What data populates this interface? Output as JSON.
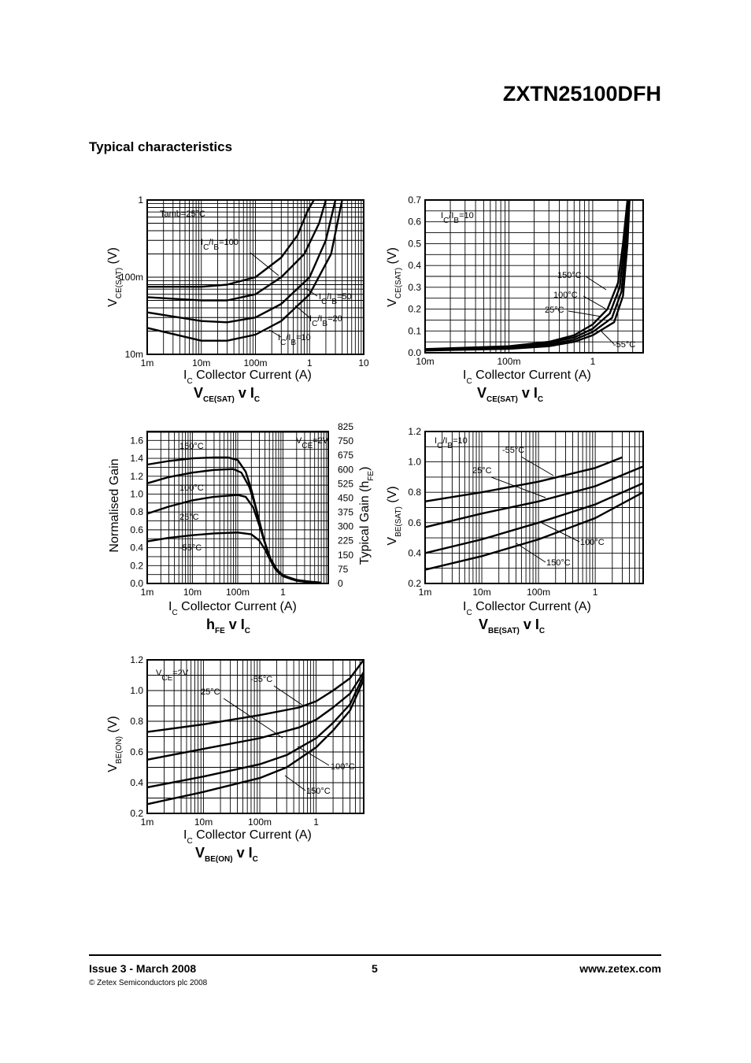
{
  "header": {
    "part_number": "ZXTN25100DFH",
    "section_title": "Typical characteristics"
  },
  "footer": {
    "issue": "Issue 3 - March 2008",
    "page": "5",
    "website": "www.zetex.com",
    "copyright": "© Zetex Semiconductors plc 2008"
  },
  "chart_data": [
    {
      "type": "line",
      "xscale": "log",
      "yscale": "log",
      "xlim": [
        0.001,
        10
      ],
      "ylim": [
        0.01,
        1
      ],
      "x_ticks": [
        "1m",
        "10m",
        "100m",
        "1",
        "10"
      ],
      "y_ticks": [
        "10m",
        "100m",
        "1"
      ],
      "xlabel": {
        "main": "I",
        "sub": "C",
        "rest": "  Collector Current (A)"
      },
      "ylabel": {
        "main": "V",
        "sub": "CE(SAT)",
        "rest": " (V)"
      },
      "caption": {
        "main": "V",
        "sub": "CE(SAT)",
        "rest": " v I",
        "sub2": "C"
      },
      "annotations": [
        "Tamb=25°C",
        "IC/IB=100",
        "IC/IB=50",
        "IC/IB=20",
        "IC/IB=10"
      ],
      "series": [
        {
          "x": [
            0.001,
            0.01,
            0.03,
            0.1,
            0.3,
            0.6,
            0.9,
            1.2
          ],
          "y": [
            0.075,
            0.075,
            0.08,
            0.1,
            0.18,
            0.35,
            0.7,
            1.0
          ]
        },
        {
          "x": [
            0.001,
            0.01,
            0.03,
            0.1,
            0.3,
            0.8,
            1.5,
            2.0
          ],
          "y": [
            0.055,
            0.05,
            0.05,
            0.06,
            0.1,
            0.2,
            0.5,
            1.0
          ]
        },
        {
          "x": [
            0.001,
            0.01,
            0.03,
            0.1,
            0.3,
            1.0,
            2.0,
            3.0
          ],
          "y": [
            0.035,
            0.027,
            0.026,
            0.03,
            0.045,
            0.1,
            0.3,
            1.0
          ]
        },
        {
          "x": [
            0.001,
            0.01,
            0.03,
            0.1,
            0.3,
            1.0,
            2.5,
            4.0
          ],
          "y": [
            0.022,
            0.015,
            0.015,
            0.018,
            0.027,
            0.06,
            0.2,
            1.0
          ]
        }
      ]
    },
    {
      "type": "line",
      "xscale": "log",
      "yscale": "linear",
      "xlim": [
        0.01,
        4
      ],
      "ylim": [
        0,
        0.7
      ],
      "x_ticks": [
        "10m",
        "100m",
        "1"
      ],
      "y_ticks": [
        "0.0",
        "0.1",
        "0.2",
        "0.3",
        "0.4",
        "0.5",
        "0.6",
        "0.7"
      ],
      "xlabel": {
        "main": "I",
        "sub": "C",
        "rest": "  Collector Current (A)"
      },
      "ylabel": {
        "main": "V",
        "sub": "CE(SAT)",
        "rest": " (V)"
      },
      "caption": {
        "main": "V",
        "sub": "CE(SAT)",
        "rest": " v I",
        "sub2": "C"
      },
      "annotations": [
        "IC/IB=10",
        "150°C",
        "100°C",
        "25°C",
        "-55°C"
      ],
      "series": [
        {
          "name": "150°C",
          "x": [
            0.01,
            0.1,
            0.3,
            0.6,
            1,
            1.5,
            2.0,
            2.3,
            2.6
          ],
          "y": [
            0.017,
            0.03,
            0.05,
            0.08,
            0.13,
            0.2,
            0.32,
            0.5,
            0.7
          ]
        },
        {
          "name": "100°C",
          "x": [
            0.01,
            0.1,
            0.3,
            0.6,
            1,
            1.6,
            2.1,
            2.4,
            2.65
          ],
          "y": [
            0.015,
            0.027,
            0.045,
            0.07,
            0.11,
            0.18,
            0.3,
            0.5,
            0.7
          ]
        },
        {
          "name": "25°C",
          "x": [
            0.01,
            0.1,
            0.3,
            0.6,
            1,
            1.7,
            2.2,
            2.5,
            2.7
          ],
          "y": [
            0.012,
            0.022,
            0.037,
            0.06,
            0.095,
            0.16,
            0.28,
            0.5,
            0.7
          ]
        },
        {
          "name": "-55°C",
          "x": [
            0.01,
            0.1,
            0.3,
            0.6,
            1,
            1.8,
            2.3,
            2.6,
            2.75
          ],
          "y": [
            0.01,
            0.018,
            0.03,
            0.05,
            0.08,
            0.14,
            0.26,
            0.5,
            0.7
          ]
        }
      ]
    },
    {
      "type": "line",
      "xscale": "log",
      "yscale": "linear",
      "xlim": [
        0.001,
        10
      ],
      "ylim": [
        0,
        1.7
      ],
      "x_ticks": [
        "1m",
        "10m",
        "100m",
        "1"
      ],
      "y_ticks": [
        "0.0",
        "0.2",
        "0.4",
        "0.6",
        "0.8",
        "1.0",
        "1.2",
        "1.4",
        "1.6"
      ],
      "y2_ticks": [
        "0",
        "75",
        "150",
        "225",
        "300",
        "375",
        "450",
        "525",
        "600",
        "675",
        "750",
        "825"
      ],
      "xlabel": {
        "main": "I",
        "sub": "C",
        "rest": "  Collector Current (A)"
      },
      "ylabel": {
        "main": "Normalised Gain",
        "sub": "",
        "rest": ""
      },
      "y2label": {
        "main": "Typical Gain (h",
        "sub": "FE",
        "rest": ")"
      },
      "caption": {
        "main": "h",
        "sub": "FE",
        "rest": " v I",
        "sub2": "C"
      },
      "annotations": [
        "VCE=2V",
        "150°C",
        "100°C",
        "25°C",
        "-55°C"
      ],
      "series": [
        {
          "name": "150°C",
          "x": [
            0.001,
            0.003,
            0.01,
            0.03,
            0.06,
            0.1,
            0.15,
            0.2,
            0.3,
            0.4,
            0.6,
            1,
            2,
            4,
            7
          ],
          "y": [
            1.33,
            1.37,
            1.4,
            1.41,
            1.41,
            1.38,
            1.25,
            1.05,
            0.7,
            0.45,
            0.2,
            0.09,
            0.04,
            0.02,
            0.01
          ]
        },
        {
          "name": "100°C",
          "x": [
            0.001,
            0.003,
            0.01,
            0.03,
            0.08,
            0.12,
            0.18,
            0.25,
            0.35,
            0.5,
            0.8,
            1.5,
            3,
            7
          ],
          "y": [
            1.12,
            1.19,
            1.24,
            1.27,
            1.28,
            1.24,
            1.08,
            0.85,
            0.55,
            0.3,
            0.12,
            0.05,
            0.02,
            0.01
          ]
        },
        {
          "name": "25°C",
          "x": [
            0.001,
            0.003,
            0.01,
            0.03,
            0.1,
            0.15,
            0.22,
            0.3,
            0.4,
            0.55,
            0.8,
            1.5,
            3,
            7
          ],
          "y": [
            0.78,
            0.86,
            0.93,
            0.97,
            0.99,
            0.97,
            0.85,
            0.65,
            0.45,
            0.25,
            0.12,
            0.05,
            0.02,
            0.01
          ]
        },
        {
          "name": "-55°C",
          "x": [
            0.001,
            0.003,
            0.01,
            0.03,
            0.1,
            0.2,
            0.3,
            0.4,
            0.5,
            0.7,
            1,
            2,
            5
          ],
          "y": [
            0.47,
            0.51,
            0.54,
            0.56,
            0.57,
            0.55,
            0.48,
            0.38,
            0.28,
            0.15,
            0.08,
            0.03,
            0.01
          ]
        }
      ]
    },
    {
      "type": "line",
      "xscale": "log",
      "yscale": "linear",
      "xlim": [
        0.001,
        7
      ],
      "ylim": [
        0.2,
        1.2
      ],
      "x_ticks": [
        "1m",
        "10m",
        "100m",
        "1"
      ],
      "y_ticks": [
        "0.2",
        "0.4",
        "0.6",
        "0.8",
        "1.0",
        "1.2"
      ],
      "xlabel": {
        "main": "I",
        "sub": "C",
        "rest": "  Collector Current (A)"
      },
      "ylabel": {
        "main": "V",
        "sub": "BE(SAT)",
        "rest": " (V)"
      },
      "caption": {
        "main": "V",
        "sub": "BE(SAT)",
        "rest": " v I",
        "sub2": "C"
      },
      "annotations": [
        "IC/IB=10",
        "-55°C",
        "25°C",
        "100°C",
        "150°C"
      ],
      "series": [
        {
          "name": "-55°C",
          "x": [
            0.001,
            0.01,
            0.1,
            1,
            3
          ],
          "y": [
            0.74,
            0.8,
            0.87,
            0.96,
            1.03
          ]
        },
        {
          "name": "25°C",
          "x": [
            0.001,
            0.01,
            0.1,
            1,
            7
          ],
          "y": [
            0.57,
            0.66,
            0.74,
            0.84,
            0.97
          ]
        },
        {
          "name": "100°C",
          "x": [
            0.001,
            0.01,
            0.1,
            1,
            7
          ],
          "y": [
            0.4,
            0.49,
            0.6,
            0.72,
            0.86
          ]
        },
        {
          "name": "150°C",
          "x": [
            0.001,
            0.01,
            0.1,
            1,
            7
          ],
          "y": [
            0.29,
            0.38,
            0.49,
            0.63,
            0.8
          ]
        }
      ]
    },
    {
      "type": "line",
      "xscale": "log",
      "yscale": "linear",
      "xlim": [
        0.001,
        7
      ],
      "ylim": [
        0.2,
        1.2
      ],
      "x_ticks": [
        "1m",
        "10m",
        "100m",
        "1"
      ],
      "y_ticks": [
        "0.2",
        "0.4",
        "0.6",
        "0.8",
        "1.0",
        "1.2"
      ],
      "xlabel": {
        "main": "I",
        "sub": "C",
        "rest": "  Collector Current (A)"
      },
      "ylabel": {
        "main": "V",
        "sub": "BE(ON)",
        "rest": " (V)"
      },
      "caption": {
        "main": "V",
        "sub": "BE(ON)",
        "rest": " v I",
        "sub2": "C"
      },
      "annotations": [
        "VCE=2V",
        "-55°C",
        "25°C",
        "100°C",
        "150°C"
      ],
      "series": [
        {
          "name": "-55°C",
          "x": [
            0.001,
            0.01,
            0.1,
            0.5,
            1,
            2,
            4,
            7
          ],
          "y": [
            0.73,
            0.78,
            0.84,
            0.89,
            0.93,
            1.0,
            1.08,
            1.2
          ]
        },
        {
          "name": "25°C",
          "x": [
            0.001,
            0.01,
            0.1,
            0.5,
            1,
            2,
            4,
            7
          ],
          "y": [
            0.55,
            0.62,
            0.69,
            0.76,
            0.81,
            0.89,
            0.98,
            1.12
          ]
        },
        {
          "name": "100°C",
          "x": [
            0.001,
            0.01,
            0.1,
            0.3,
            1,
            2,
            4,
            7
          ],
          "y": [
            0.37,
            0.44,
            0.52,
            0.58,
            0.69,
            0.79,
            0.91,
            1.1
          ]
        },
        {
          "name": "150°C",
          "x": [
            0.001,
            0.01,
            0.1,
            0.3,
            1,
            2,
            4,
            7
          ],
          "y": [
            0.26,
            0.34,
            0.43,
            0.5,
            0.63,
            0.74,
            0.87,
            1.07
          ]
        }
      ]
    }
  ]
}
